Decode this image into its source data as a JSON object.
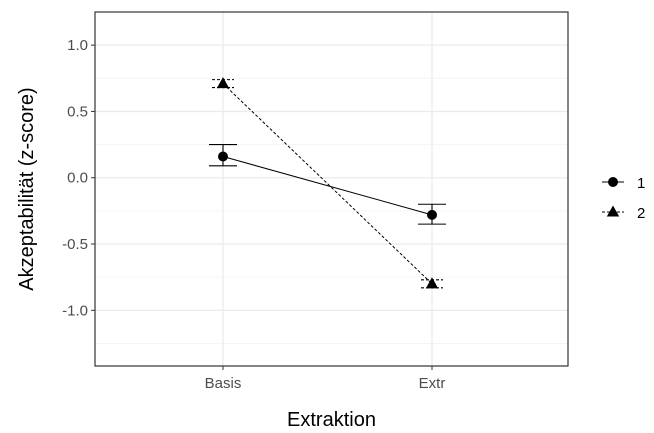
{
  "chart_data": {
    "type": "line",
    "xlabel": "Extraktion",
    "ylabel": "Akzeptabilität (z-score)",
    "categories": [
      "Basis",
      "Extr"
    ],
    "ylim": [
      -1.42,
      1.25
    ],
    "yticks": [
      1.0,
      0.5,
      0.0,
      -0.5,
      -1.0
    ],
    "ytick_labels": [
      "1.0",
      "0.5",
      "0.0",
      "-0.5",
      "-1.0"
    ],
    "grid": true,
    "legend_position": "right",
    "series": [
      {
        "name": "1",
        "marker": "circle",
        "linestyle": "solid",
        "values": [
          0.16,
          -0.28
        ],
        "error_low": [
          0.09,
          -0.35
        ],
        "error_high": [
          0.25,
          -0.2
        ]
      },
      {
        "name": "2",
        "marker": "triangle",
        "linestyle": "dashed",
        "values": [
          0.71,
          -0.8
        ],
        "error_low": [
          0.68,
          -0.83
        ],
        "error_high": [
          0.74,
          -0.77
        ]
      }
    ]
  },
  "colors": {
    "panel_border": "#333333",
    "grid_major": "#ebebeb",
    "grid_minor": "#f5f5f5",
    "series": "#000000"
  }
}
